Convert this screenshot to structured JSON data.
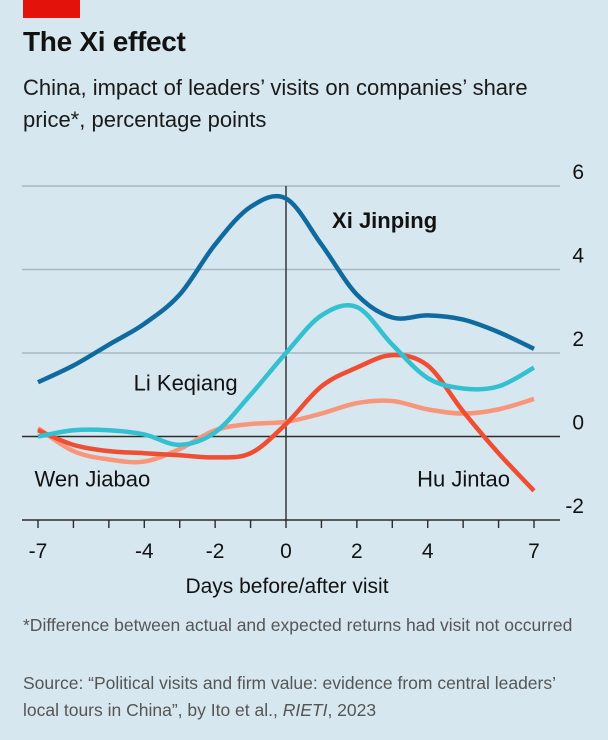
{
  "header": {
    "title": "The Xi effect",
    "subtitle": "China, impact of leaders’ visits on companies’ share price*, percentage points"
  },
  "footer": {
    "footnote": "*Difference between actual and expected returns had visit not occurred",
    "source_prefix": "Source: “Political visits and firm value: evidence from central leaders’ local tours in China”, by Ito et al., ",
    "source_publisher": "RIETI",
    "source_suffix": ", 2023"
  },
  "colors": {
    "background": "#d7e7ef",
    "brand_red": "#e3120b",
    "xi": "#0f6aa0",
    "li": "#33c0d0",
    "hu": "#f04e33",
    "wen": "#f7967a"
  },
  "chart_data": {
    "type": "line",
    "title": "The Xi effect",
    "subtitle": "China, impact of leaders’ visits on companies’ share price*, percentage points",
    "xlabel": "Days before/after visit",
    "ylabel": "",
    "xlim": [
      -7,
      7
    ],
    "ylim": [
      -2,
      6
    ],
    "x_ticks": [
      -7,
      -6,
      -5,
      -4,
      -3,
      -2,
      -1,
      0,
      1,
      2,
      3,
      4,
      5,
      6,
      7
    ],
    "x_tick_labels": [
      {
        "value": -7,
        "label": "-7"
      },
      {
        "value": -4,
        "label": "-4"
      },
      {
        "value": -2,
        "label": "-2"
      },
      {
        "value": 0,
        "label": "0"
      },
      {
        "value": 2,
        "label": "2"
      },
      {
        "value": 4,
        "label": "4"
      },
      {
        "value": 7,
        "label": "7"
      }
    ],
    "y_ticks": [
      {
        "value": 6,
        "label": "6"
      },
      {
        "value": 4,
        "label": "4"
      },
      {
        "value": 2,
        "label": "2"
      },
      {
        "value": 0,
        "label": "0"
      },
      {
        "value": -2,
        "label": "-2"
      }
    ],
    "grid": "horizontal",
    "legend": "inline-labels",
    "x": [
      -7,
      -6,
      -5,
      -4,
      -3,
      -2,
      -1,
      0,
      1,
      2,
      3,
      4,
      5,
      6,
      7
    ],
    "series": [
      {
        "name": "Xi Jinping",
        "color": "#0f6aa0",
        "label_bold": true,
        "label_anchor": {
          "x": 1.3,
          "y": 5.0
        },
        "values": [
          1.3,
          1.7,
          2.2,
          2.7,
          3.4,
          4.6,
          5.5,
          5.7,
          4.6,
          3.4,
          2.85,
          2.9,
          2.8,
          2.5,
          2.1
        ]
      },
      {
        "name": "Li Keqiang",
        "color": "#33c0d0",
        "label_bold": false,
        "label_anchor": {
          "x": -4.3,
          "y": 1.1
        },
        "values": [
          0.0,
          0.15,
          0.15,
          0.05,
          -0.2,
          0.1,
          1.0,
          2.0,
          2.9,
          3.1,
          2.2,
          1.4,
          1.15,
          1.2,
          1.65
        ]
      },
      {
        "name": "Hu Jintao",
        "color": "#f04e33",
        "label_bold": false,
        "label_anchor": {
          "x": 3.7,
          "y": -1.2
        },
        "values": [
          0.15,
          -0.2,
          -0.35,
          -0.4,
          -0.45,
          -0.5,
          -0.4,
          0.3,
          1.2,
          1.65,
          1.95,
          1.7,
          0.6,
          -0.4,
          -1.3
        ]
      },
      {
        "name": "Wen Jiabao",
        "color": "#f7967a",
        "label_bold": false,
        "label_anchor": {
          "x": -7.1,
          "y": -1.2
        },
        "values": [
          0.2,
          -0.35,
          -0.55,
          -0.6,
          -0.3,
          0.15,
          0.3,
          0.35,
          0.55,
          0.8,
          0.85,
          0.65,
          0.55,
          0.65,
          0.9
        ]
      }
    ]
  }
}
